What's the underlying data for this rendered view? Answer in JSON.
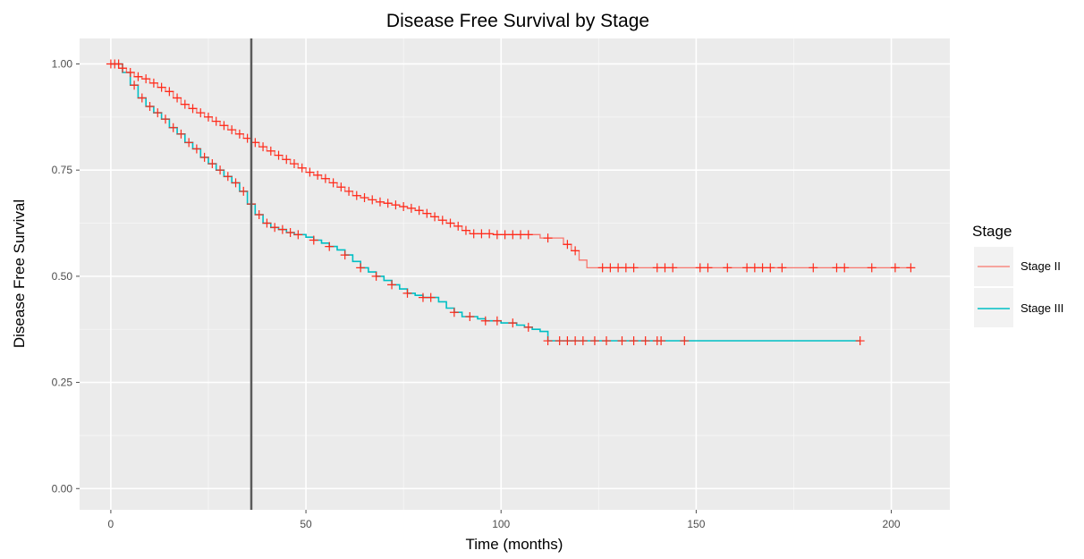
{
  "chart_data": {
    "type": "line",
    "title": "Disease Free Survival by Stage",
    "xlabel": "Time (months)",
    "ylabel": "Disease Free Survival",
    "xlim": [
      -8,
      215
    ],
    "ylim": [
      -0.05,
      1.06
    ],
    "x_ticks": [
      0,
      50,
      100,
      150,
      200
    ],
    "x_tick_labels": [
      "0",
      "50",
      "100",
      "150",
      "200"
    ],
    "y_ticks": [
      0,
      0.25,
      0.5,
      0.75,
      1.0
    ],
    "y_tick_labels": [
      "0.00",
      "0.25",
      "0.50",
      "0.75",
      "1.00"
    ],
    "reference_line_x": 36,
    "reference_line_color": "#5a5a5a",
    "grid": true,
    "panel_background": "#ebebeb",
    "legend": {
      "title": "Stage",
      "placement": "right"
    },
    "series": [
      {
        "name": "Stage II",
        "color": "#f8766d",
        "censor_color": "#ff2a1a",
        "steps": [
          [
            0,
            1.0
          ],
          [
            2,
            0.99
          ],
          [
            4,
            0.98
          ],
          [
            6,
            0.97
          ],
          [
            8,
            0.965
          ],
          [
            10,
            0.955
          ],
          [
            12,
            0.945
          ],
          [
            14,
            0.935
          ],
          [
            16,
            0.92
          ],
          [
            18,
            0.905
          ],
          [
            20,
            0.895
          ],
          [
            22,
            0.885
          ],
          [
            24,
            0.875
          ],
          [
            26,
            0.865
          ],
          [
            28,
            0.855
          ],
          [
            30,
            0.845
          ],
          [
            32,
            0.835
          ],
          [
            34,
            0.825
          ],
          [
            36,
            0.815
          ],
          [
            38,
            0.805
          ],
          [
            40,
            0.795
          ],
          [
            42,
            0.785
          ],
          [
            44,
            0.775
          ],
          [
            46,
            0.765
          ],
          [
            48,
            0.755
          ],
          [
            50,
            0.745
          ],
          [
            52,
            0.738
          ],
          [
            54,
            0.73
          ],
          [
            56,
            0.72
          ],
          [
            58,
            0.71
          ],
          [
            60,
            0.7
          ],
          [
            62,
            0.69
          ],
          [
            64,
            0.685
          ],
          [
            66,
            0.68
          ],
          [
            68,
            0.675
          ],
          [
            70,
            0.672
          ],
          [
            72,
            0.668
          ],
          [
            74,
            0.664
          ],
          [
            76,
            0.66
          ],
          [
            78,
            0.655
          ],
          [
            80,
            0.648
          ],
          [
            82,
            0.64
          ],
          [
            84,
            0.632
          ],
          [
            86,
            0.625
          ],
          [
            88,
            0.618
          ],
          [
            90,
            0.608
          ],
          [
            92,
            0.6
          ],
          [
            98,
            0.598
          ],
          [
            108,
            0.598
          ],
          [
            110,
            0.59
          ],
          [
            116,
            0.575
          ],
          [
            118,
            0.56
          ],
          [
            120,
            0.538
          ],
          [
            122,
            0.52
          ],
          [
            205,
            0.52
          ]
        ],
        "censored_x": [
          1,
          3,
          5,
          7,
          9,
          11,
          13,
          15,
          17,
          19,
          21,
          23,
          25,
          27,
          29,
          31,
          33,
          35,
          37,
          39,
          41,
          43,
          45,
          47,
          49,
          51,
          53,
          55,
          57,
          59,
          61,
          63,
          65,
          67,
          69,
          71,
          73,
          75,
          77,
          79,
          81,
          83,
          85,
          87,
          89,
          91,
          93,
          95,
          97,
          99,
          101,
          103,
          105,
          107,
          112,
          117,
          119,
          126,
          128,
          130,
          132,
          134,
          140,
          142,
          144,
          151,
          153,
          158,
          163,
          165,
          167,
          169,
          172,
          180,
          186,
          188,
          195,
          201,
          205
        ]
      },
      {
        "name": "Stage III",
        "color": "#00bfc4",
        "censor_color": "#ff2a1a",
        "steps": [
          [
            0,
            1.0
          ],
          [
            3,
            0.98
          ],
          [
            5,
            0.95
          ],
          [
            7,
            0.92
          ],
          [
            9,
            0.9
          ],
          [
            11,
            0.885
          ],
          [
            13,
            0.87
          ],
          [
            15,
            0.85
          ],
          [
            17,
            0.835
          ],
          [
            19,
            0.815
          ],
          [
            21,
            0.8
          ],
          [
            23,
            0.78
          ],
          [
            25,
            0.765
          ],
          [
            27,
            0.75
          ],
          [
            29,
            0.735
          ],
          [
            31,
            0.72
          ],
          [
            33,
            0.7
          ],
          [
            35,
            0.67
          ],
          [
            37,
            0.645
          ],
          [
            39,
            0.625
          ],
          [
            41,
            0.615
          ],
          [
            43,
            0.61
          ],
          [
            45,
            0.603
          ],
          [
            47,
            0.598
          ],
          [
            50,
            0.592
          ],
          [
            52,
            0.585
          ],
          [
            54,
            0.578
          ],
          [
            56,
            0.57
          ],
          [
            58,
            0.562
          ],
          [
            60,
            0.55
          ],
          [
            62,
            0.535
          ],
          [
            64,
            0.52
          ],
          [
            66,
            0.51
          ],
          [
            68,
            0.5
          ],
          [
            70,
            0.49
          ],
          [
            72,
            0.48
          ],
          [
            74,
            0.47
          ],
          [
            76,
            0.46
          ],
          [
            78,
            0.455
          ],
          [
            80,
            0.45
          ],
          [
            84,
            0.44
          ],
          [
            86,
            0.425
          ],
          [
            88,
            0.415
          ],
          [
            90,
            0.405
          ],
          [
            94,
            0.4
          ],
          [
            96,
            0.395
          ],
          [
            100,
            0.39
          ],
          [
            104,
            0.385
          ],
          [
            106,
            0.38
          ],
          [
            108,
            0.375
          ],
          [
            110,
            0.37
          ],
          [
            112,
            0.348
          ],
          [
            192,
            0.348
          ]
        ],
        "censored_x": [
          0,
          2,
          6,
          8,
          10,
          12,
          14,
          16,
          18,
          20,
          22,
          24,
          26,
          28,
          30,
          32,
          34,
          36,
          38,
          40,
          42,
          44,
          46,
          48,
          52,
          56,
          60,
          64,
          68,
          72,
          76,
          80,
          82,
          88,
          92,
          96,
          99,
          103,
          107,
          112,
          115,
          117,
          119,
          121,
          124,
          127,
          131,
          134,
          137,
          140,
          141,
          147,
          192
        ]
      }
    ]
  }
}
